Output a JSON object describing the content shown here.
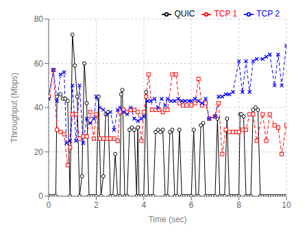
{
  "chart_data": {
    "type": "line",
    "xlabel": "Time (sec)",
    "ylabel": "Throughput (Mbps)",
    "xlim": [
      0,
      10
    ],
    "ylim": [
      0,
      80
    ],
    "xticks": [
      0,
      2,
      4,
      6,
      8,
      10
    ],
    "yticks": [
      0,
      20,
      40,
      60,
      80
    ],
    "grid": true,
    "legend": "upper right",
    "series": [
      {
        "name": "QUIC",
        "color": "black",
        "marker": "circle",
        "line_style": "solid",
        "x": [
          0.0,
          0.1,
          0.2,
          0.3,
          0.35,
          0.5,
          0.6,
          0.7,
          0.8,
          0.9,
          1.0,
          1.1,
          1.2,
          1.3,
          1.4,
          1.5,
          1.6,
          1.7,
          1.8,
          1.9,
          2.0,
          2.1,
          2.2,
          2.3,
          2.4,
          2.5,
          2.6,
          2.7,
          2.8,
          2.9,
          3.0,
          3.05,
          3.1,
          3.2,
          3.3,
          3.4,
          3.5,
          3.6,
          3.7,
          3.75,
          3.8,
          3.9,
          4.0,
          4.1,
          4.2,
          4.3,
          4.4,
          4.5,
          4.6,
          4.7,
          4.8,
          4.9,
          5.0,
          5.1,
          5.2,
          5.3,
          5.4,
          5.5,
          5.6,
          5.7,
          5.8,
          5.9,
          6.0,
          6.1,
          6.2,
          6.3,
          6.4,
          6.5,
          6.6,
          6.7,
          6.8,
          6.9,
          7.0,
          7.1,
          7.2,
          7.3,
          7.4,
          7.5,
          7.6,
          7.7,
          7.8,
          7.9,
          8.0,
          8.05,
          8.1,
          8.2,
          8.3,
          8.4,
          8.5,
          8.6,
          8.7,
          8.8,
          8.9,
          9.0,
          9.1,
          9.2,
          9.3,
          9.4,
          9.5,
          9.6,
          9.7,
          9.8,
          9.9,
          10.0
        ],
        "values": [
          0,
          0,
          0,
          0,
          45,
          46,
          44,
          44,
          43,
          0,
          73,
          59,
          45,
          0,
          9,
          60,
          42,
          0,
          0,
          0,
          0,
          45,
          0,
          9,
          37,
          38,
          0,
          0,
          19,
          0,
          0,
          46,
          48,
          0,
          0,
          30,
          31,
          30,
          0,
          31,
          0,
          0,
          0,
          47,
          0,
          0,
          0,
          29,
          30,
          29,
          30,
          0,
          0,
          29,
          30,
          0,
          0,
          30,
          0,
          0,
          0,
          0,
          0,
          30,
          0,
          0,
          32,
          33,
          0,
          0,
          0,
          0,
          0,
          35,
          0,
          0,
          0,
          35,
          0,
          0,
          0,
          0,
          0,
          37,
          37,
          36,
          0,
          0,
          0,
          39,
          40,
          39,
          0,
          0,
          0,
          0,
          0,
          0,
          0,
          0,
          0,
          0,
          0,
          0
        ]
      },
      {
        "name": "TCP 1",
        "color": "red",
        "marker": "square",
        "line_style": "dashed",
        "x": [
          0.0,
          0.2,
          0.35,
          0.5,
          0.65,
          0.8,
          0.9,
          1.0,
          1.15,
          1.3,
          1.45,
          1.6,
          1.75,
          1.9,
          2.0,
          2.15,
          2.3,
          2.45,
          2.6,
          2.75,
          2.9,
          3.0,
          3.15,
          3.3,
          3.45,
          3.6,
          3.75,
          3.9,
          4.0,
          4.1,
          4.2,
          4.35,
          4.5,
          4.65,
          4.8,
          4.9,
          5.0,
          5.2,
          5.35,
          5.5,
          5.65,
          5.8,
          6.0,
          6.15,
          6.3,
          6.45,
          6.6,
          6.75,
          7.0,
          7.15,
          7.3,
          7.45,
          7.6,
          7.75,
          7.9,
          8.0,
          8.15,
          8.3,
          8.45,
          8.6,
          8.75,
          9.0,
          9.15,
          9.3,
          9.5,
          9.65,
          9.8,
          10.0
        ],
        "values": [
          45,
          57,
          30,
          29,
          28,
          14,
          22,
          37,
          37,
          26,
          27,
          27,
          38,
          26,
          37,
          26,
          26,
          26,
          26,
          26,
          25,
          38,
          39,
          38,
          39,
          39,
          38,
          25,
          38,
          45,
          55,
          39,
          39,
          39,
          38,
          39,
          39,
          55,
          55,
          42,
          41,
          41,
          41,
          42,
          53,
          41,
          42,
          35,
          36,
          42,
          19,
          30,
          29,
          29,
          29,
          29,
          30,
          30,
          37,
          37,
          25,
          37,
          25,
          37,
          32,
          31,
          19,
          32
        ]
      },
      {
        "name": "TCP 2",
        "color": "blue",
        "marker": "x",
        "line_style": "dashed",
        "x": [
          0.0,
          0.2,
          0.35,
          0.5,
          0.65,
          0.75,
          0.9,
          1.0,
          1.15,
          1.3,
          1.45,
          1.6,
          1.75,
          1.9,
          2.0,
          2.15,
          2.3,
          2.45,
          2.6,
          2.75,
          2.9,
          3.0,
          3.15,
          3.3,
          3.45,
          3.6,
          3.75,
          3.9,
          4.0,
          4.15,
          4.3,
          4.45,
          4.6,
          4.75,
          4.9,
          5.0,
          5.15,
          5.3,
          5.45,
          5.6,
          5.75,
          5.9,
          6.0,
          6.15,
          6.3,
          6.45,
          6.6,
          6.75,
          7.0,
          7.15,
          7.3,
          7.45,
          7.6,
          7.75,
          8.0,
          8.15,
          8.3,
          8.45,
          8.6,
          8.75,
          9.0,
          9.15,
          9.3,
          9.5,
          9.65,
          9.8,
          10.0
        ],
        "values": [
          44,
          57,
          43,
          55,
          56,
          24,
          25,
          50,
          25,
          50,
          24,
          35,
          33,
          35,
          45,
          40,
          39,
          37,
          38,
          30,
          39,
          40,
          38,
          37,
          40,
          35,
          34,
          35,
          36,
          43,
          43,
          44,
          40,
          44,
          41,
          44,
          43,
          43,
          44,
          43,
          43,
          43,
          43,
          44,
          43,
          42,
          44,
          35,
          36,
          45,
          45,
          46,
          46,
          47,
          61,
          47,
          61,
          47,
          61,
          62,
          62,
          63,
          64,
          50,
          64,
          50,
          68
        ]
      }
    ]
  }
}
